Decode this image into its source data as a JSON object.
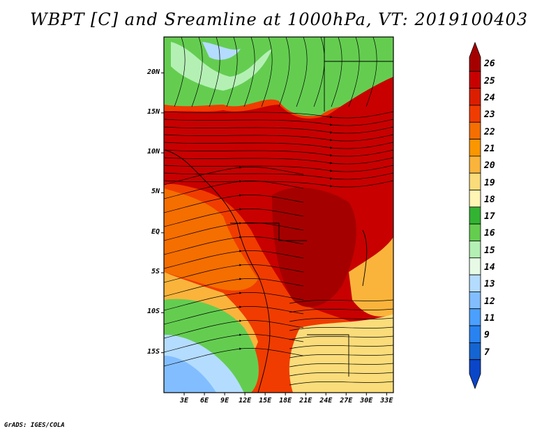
{
  "title": "WBPT [C] and Sreamline at 1000hPa, VT: 2019100403",
  "credit": "GrADS: IGES/COLA",
  "map": {
    "lat_labels": [
      "20N",
      "15N",
      "10N",
      "5N",
      "EQ",
      "5S",
      "10S",
      "15S"
    ],
    "lon_labels": [
      "3E",
      "6E",
      "9E",
      "12E",
      "15E",
      "18E",
      "21E",
      "24E",
      "27E",
      "30E",
      "33E"
    ],
    "lat_values": [
      20,
      15,
      10,
      5,
      0,
      -5,
      -10,
      -15
    ],
    "lon_values": [
      3,
      6,
      9,
      12,
      15,
      18,
      21,
      24,
      27,
      30,
      33
    ],
    "lat_range": [
      -20,
      24.5
    ],
    "lon_range": [
      0,
      34
    ]
  },
  "colorbar": {
    "labels": [
      "26",
      "25",
      "24",
      "23",
      "22",
      "21",
      "20",
      "19",
      "18",
      "17",
      "16",
      "15",
      "14",
      "13",
      "12",
      "11",
      "9",
      "7"
    ],
    "colors": [
      "#a50000",
      "#c80000",
      "#dc1e00",
      "#f03c00",
      "#f56e00",
      "#fa9600",
      "#fab43c",
      "#fadc7a",
      "#fff5b4",
      "#32b432",
      "#64cd50",
      "#b4f0b4",
      "#e6fae6",
      "#b4dcff",
      "#82beff",
      "#4ba0ff",
      "#2882f0",
      "#1464d2",
      "#0a46c8"
    ]
  },
  "fields": {
    "north_dry_color": "#64cd50",
    "north_light_color": "#b4f0b4",
    "core_color": "#c80000",
    "deep_core_color": "#a50000",
    "orange_color": "#f03c00",
    "coast_color": "#f56e00",
    "sw_ocean_color": "#fab43c",
    "south_ocean_blue": "#82beff",
    "south_ocean_pale": "#b4dcff",
    "southeast_color": "#fadc7a"
  }
}
